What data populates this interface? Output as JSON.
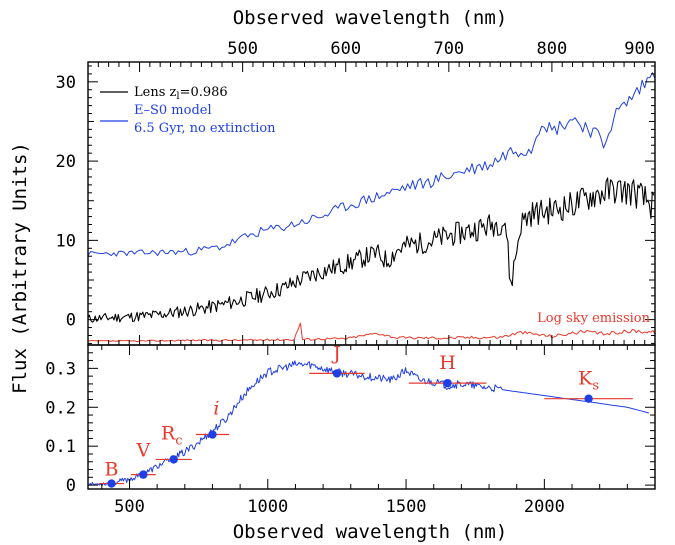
{
  "chart_data": {
    "type": "line",
    "top_axis_label": "Observed wavelength (nm)",
    "bottom_axis_label": "Observed wavelength (nm)",
    "ylabel": "Flux (Arbitrary Units)",
    "colors": {
      "lens": "#000000",
      "model": "#1f3fe6",
      "sky": "#e8392b",
      "photometry": "#e8392b",
      "photometry_dot": "#1f3fe6"
    },
    "upper_panel": {
      "xlim": [
        350,
        900
      ],
      "ylim": [
        -3.2,
        32.5
      ],
      "x_ticks": [
        500,
        600,
        700,
        800,
        900
      ],
      "y_ticks": [
        0,
        10,
        20,
        30
      ],
      "legend": [
        {
          "label": "Lens z",
          "sub": "l",
          "label_after": "=0.986",
          "color": "#000000"
        },
        {
          "label": "E–S0 model",
          "line2": "6.5 Gyr, no extinction",
          "color": "#1f3fe6"
        }
      ],
      "annotations": [
        {
          "text": "Log sky emission",
          "color": "#e8392b"
        }
      ],
      "series": [
        {
          "name": "Lens z=0.986",
          "x": [
            350,
            380,
            410,
            440,
            470,
            500,
            520,
            540,
            560,
            580,
            600,
            615,
            630,
            640,
            650,
            660,
            680,
            700,
            720,
            740,
            755,
            760,
            770,
            780,
            800,
            820,
            840,
            860,
            880,
            900
          ],
          "y": [
            0.1,
            0.3,
            0.5,
            1.0,
            1.6,
            2.5,
            3.2,
            4.0,
            5.3,
            6.2,
            7.0,
            7.7,
            8.4,
            7.4,
            8.8,
            9.4,
            9.8,
            10.6,
            11.2,
            11.9,
            12.4,
            4.2,
            12.2,
            13.4,
            13.8,
            14.5,
            15.7,
            16.4,
            16.1,
            14.2
          ]
        },
        {
          "name": "E–S0 model 6.5 Gyr, no extinction",
          "x": [
            350,
            400,
            450,
            480,
            500,
            520,
            540,
            560,
            580,
            600,
            620,
            640,
            660,
            680,
            700,
            720,
            740,
            760,
            780,
            790,
            800,
            820,
            840,
            850,
            860,
            880,
            900
          ],
          "y": [
            8.3,
            8.4,
            8.6,
            9.2,
            10.3,
            11.2,
            11.7,
            12.4,
            13.2,
            14.3,
            15.1,
            15.9,
            16.8,
            17.3,
            18.2,
            19.0,
            19.6,
            21.3,
            21.6,
            25.2,
            23.8,
            25.4,
            23.8,
            22.0,
            25.6,
            28.4,
            31.2
          ]
        },
        {
          "name": "Log sky emission",
          "x": [
            350,
            400,
            450,
            500,
            550,
            556,
            558,
            580,
            600,
            630,
            650,
            700,
            750,
            770,
            800,
            830,
            850,
            880,
            900
          ],
          "y": [
            -2.7,
            -2.7,
            -2.6,
            -2.6,
            -2.5,
            -0.4,
            -2.5,
            -2.4,
            -2.4,
            -1.7,
            -2.3,
            -2.3,
            -2.2,
            -1.6,
            -2.1,
            -1.5,
            -1.8,
            -1.4,
            -1.6
          ]
        }
      ]
    },
    "lower_panel": {
      "xlim": [
        350,
        2400
      ],
      "ylim": [
        -0.01,
        0.36
      ],
      "x_ticks": [
        500,
        1000,
        1500,
        2000
      ],
      "y_ticks": [
        0,
        0.1,
        0.2,
        0.3
      ],
      "y_tick_labels": [
        "0",
        "0.1",
        "0.2",
        "0.3"
      ],
      "model_spectrum": {
        "x": [
          350,
          400,
          450,
          500,
          550,
          600,
          650,
          700,
          750,
          800,
          850,
          900,
          950,
          1000,
          1050,
          1100,
          1150,
          1200,
          1250,
          1300,
          1350,
          1400,
          1450,
          1500,
          1550,
          1600,
          1650,
          1700,
          1750,
          1800,
          1900,
          2000,
          2100,
          2200,
          2300,
          2380
        ],
        "y": [
          0.002,
          0.003,
          0.007,
          0.015,
          0.028,
          0.048,
          0.066,
          0.085,
          0.11,
          0.14,
          0.17,
          0.22,
          0.26,
          0.29,
          0.3,
          0.31,
          0.31,
          0.3,
          0.29,
          0.285,
          0.28,
          0.275,
          0.27,
          0.295,
          0.27,
          0.265,
          0.255,
          0.26,
          0.255,
          0.25,
          0.24,
          0.23,
          0.22,
          0.21,
          0.2,
          0.185
        ]
      },
      "photometry": [
        {
          "band": "B",
          "sub": "",
          "x": 435,
          "y": 0.004,
          "xerr": 45,
          "yerr": 0.004
        },
        {
          "band": "V",
          "sub": "",
          "x": 550,
          "y": 0.027,
          "xerr": 45,
          "yerr": 0.006
        },
        {
          "band": "R",
          "sub": "c",
          "x": 660,
          "y": 0.066,
          "xerr": 65,
          "yerr": 0.008
        },
        {
          "band": "i",
          "sub": "",
          "x": 800,
          "y": 0.13,
          "xerr": 60,
          "yerr": 0.01
        },
        {
          "band": "J",
          "sub": "",
          "x": 1250,
          "y": 0.287,
          "xerr": 100,
          "yerr": 0.008
        },
        {
          "band": "H",
          "sub": "",
          "x": 1650,
          "y": 0.262,
          "xerr": 140,
          "yerr": 0.01
        },
        {
          "band": "K",
          "sub": "s",
          "x": 2160,
          "y": 0.222,
          "xerr": 160,
          "yerr": 0.006
        }
      ]
    }
  }
}
